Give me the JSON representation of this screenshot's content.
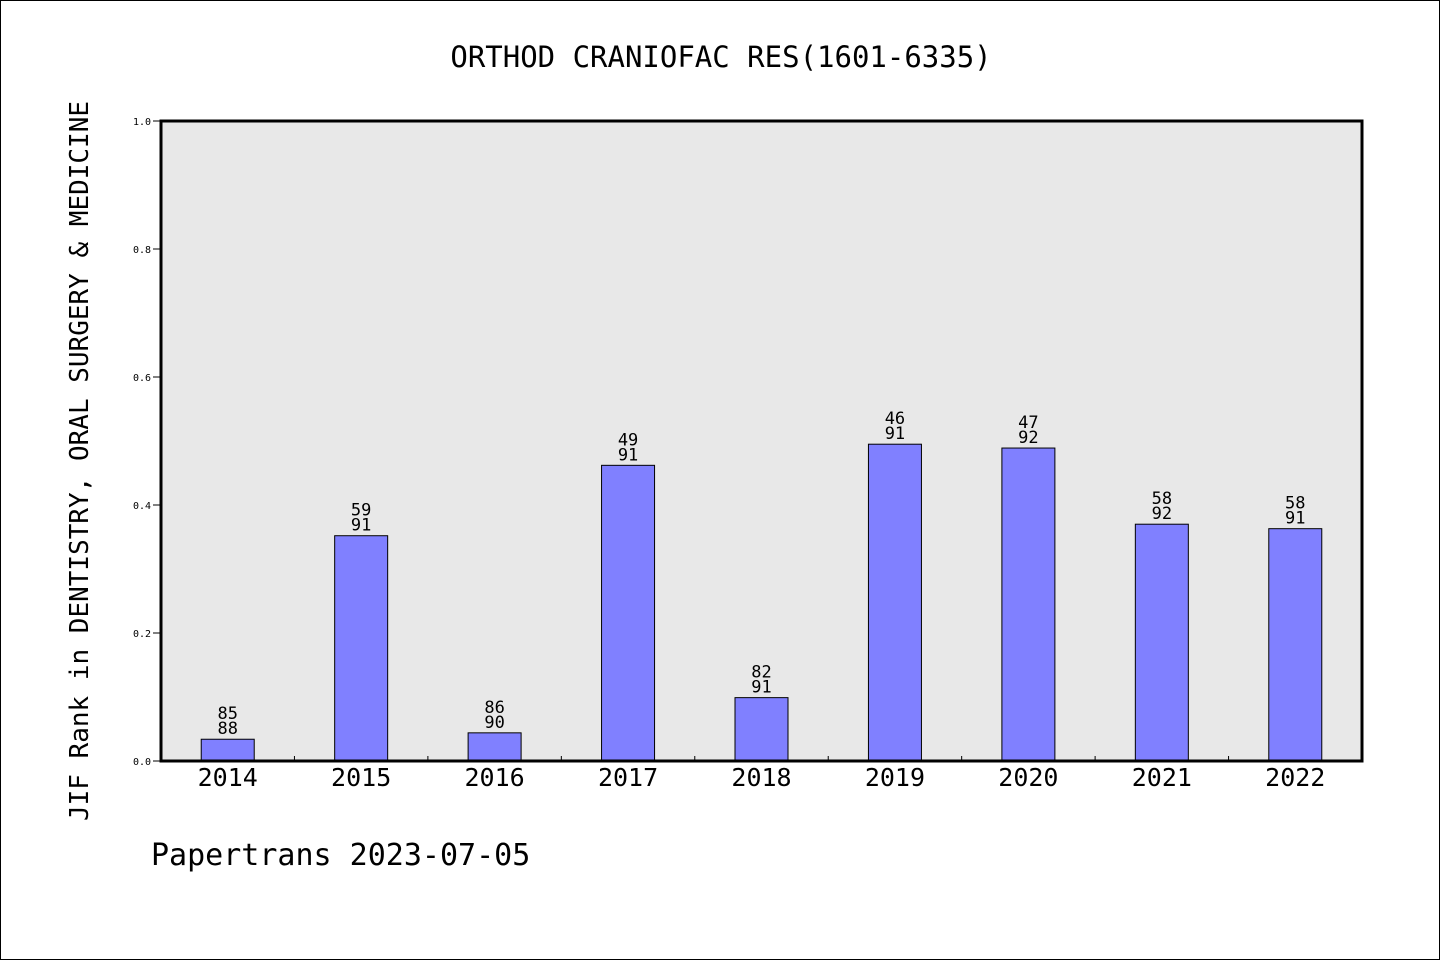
{
  "chart_data": {
    "type": "bar",
    "title": "ORTHOD CRANIOFAC RES(1601-6335)",
    "xlabel": "",
    "ylabel": "JIF Rank in DENTISTRY, ORAL SURGERY & MEDICINE",
    "ylim": [
      0,
      1.0
    ],
    "yticks": [
      "0.0",
      "0.2",
      "0.4",
      "0.6",
      "0.8",
      "1.0"
    ],
    "grid": false,
    "categories": [
      "2014",
      "2015",
      "2016",
      "2017",
      "2018",
      "2019",
      "2020",
      "2021",
      "2022"
    ],
    "values": [
      0.034,
      0.352,
      0.044,
      0.462,
      0.099,
      0.495,
      0.489,
      0.37,
      0.363
    ],
    "rank": [
      "85",
      "59",
      "86",
      "49",
      "82",
      "46",
      "47",
      "58",
      "58"
    ],
    "total": [
      "88",
      "91",
      "90",
      "91",
      "91",
      "91",
      "92",
      "92",
      "91"
    ],
    "colors": {
      "bar": "#8080ff",
      "plot_bg": "#e8e8e8",
      "axis": "#000000"
    }
  },
  "footer": {
    "text": "Papertrans 2023-07-05"
  }
}
